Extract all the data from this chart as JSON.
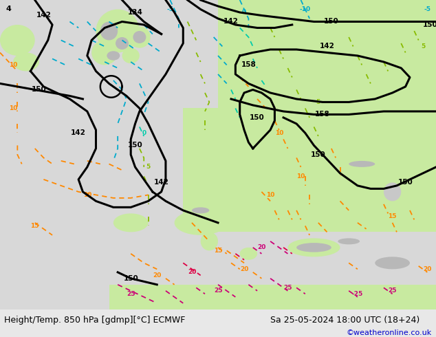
{
  "title_left": "Height/Temp. 850 hPa [gdmp][°C] ECMWF",
  "title_right": "Sa 25-05-2024 18:00 UTC (18+24)",
  "credit": "©weatheronline.co.uk",
  "fig_width": 6.34,
  "fig_height": 4.9,
  "dpi": 100,
  "bg_ocean_color": "#d8d8d8",
  "bg_land_color": "#c8eaa0",
  "bg_mountain_color": "#b8b8b8",
  "bottom_bar_color": "#e8e8e8",
  "bottom_bar_height": 0.082,
  "title_fontsize": 9.0,
  "credit_fontsize": 8.0,
  "credit_color": "#0000cc",
  "color_height": "#000000",
  "color_cold": "#00aacc",
  "color_teal": "#00ccaa",
  "color_green": "#88bb00",
  "color_orange": "#ff8800",
  "color_red": "#dd0044",
  "color_magenta": "#cc0077"
}
